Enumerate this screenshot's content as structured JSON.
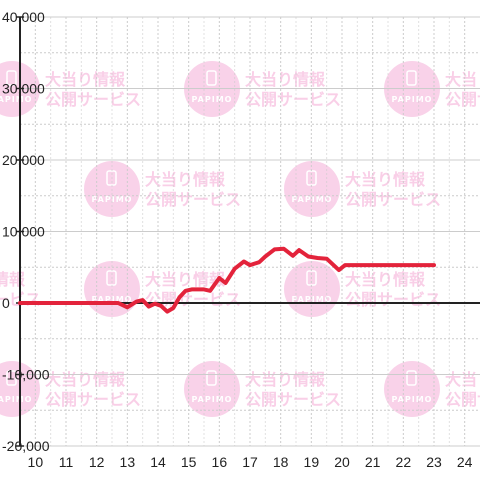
{
  "watermark": {
    "logo_text": "PAPIMO",
    "line1": "大当り情報",
    "line2": "公開サービス"
  },
  "chart_data": {
    "type": "line",
    "title": "",
    "xlabel": "",
    "ylabel": "",
    "xlim": [
      9.5,
      24.5
    ],
    "ylim": [
      -20000,
      40000
    ],
    "x_ticks": [
      10,
      11,
      12,
      13,
      14,
      15,
      16,
      17,
      18,
      19,
      20,
      21,
      22,
      23,
      24
    ],
    "y_ticks": [
      -20000,
      -10000,
      0,
      10000,
      20000,
      30000,
      40000
    ],
    "y_tick_labels": [
      "-20,000",
      "-10,000",
      "0",
      "10,000",
      "20,000",
      "30,000",
      "40,000"
    ],
    "grid": true,
    "colors": {
      "line": "#e3233b",
      "grid": "#cccccc",
      "axis": "#222222",
      "watermark": "#f7bfe0"
    },
    "series": [
      {
        "points": [
          [
            9.5,
            0
          ],
          [
            12.7,
            0
          ],
          [
            13.0,
            -600
          ],
          [
            13.3,
            200
          ],
          [
            13.5,
            400
          ],
          [
            13.7,
            -500
          ],
          [
            13.9,
            -100
          ],
          [
            14.1,
            -400
          ],
          [
            14.3,
            -1200
          ],
          [
            14.5,
            -700
          ],
          [
            14.7,
            800
          ],
          [
            14.9,
            1700
          ],
          [
            15.1,
            1900
          ],
          [
            15.5,
            1900
          ],
          [
            15.7,
            1700
          ],
          [
            16.0,
            3500
          ],
          [
            16.2,
            2800
          ],
          [
            16.5,
            4800
          ],
          [
            16.8,
            5800
          ],
          [
            17.0,
            5300
          ],
          [
            17.3,
            5700
          ],
          [
            17.5,
            6500
          ],
          [
            17.8,
            7500
          ],
          [
            18.1,
            7600
          ],
          [
            18.4,
            6600
          ],
          [
            18.6,
            7400
          ],
          [
            18.9,
            6500
          ],
          [
            19.2,
            6300
          ],
          [
            19.5,
            6200
          ],
          [
            19.9,
            4600
          ],
          [
            20.1,
            5300
          ],
          [
            20.5,
            5300
          ],
          [
            23.0,
            5300
          ]
        ]
      }
    ]
  }
}
